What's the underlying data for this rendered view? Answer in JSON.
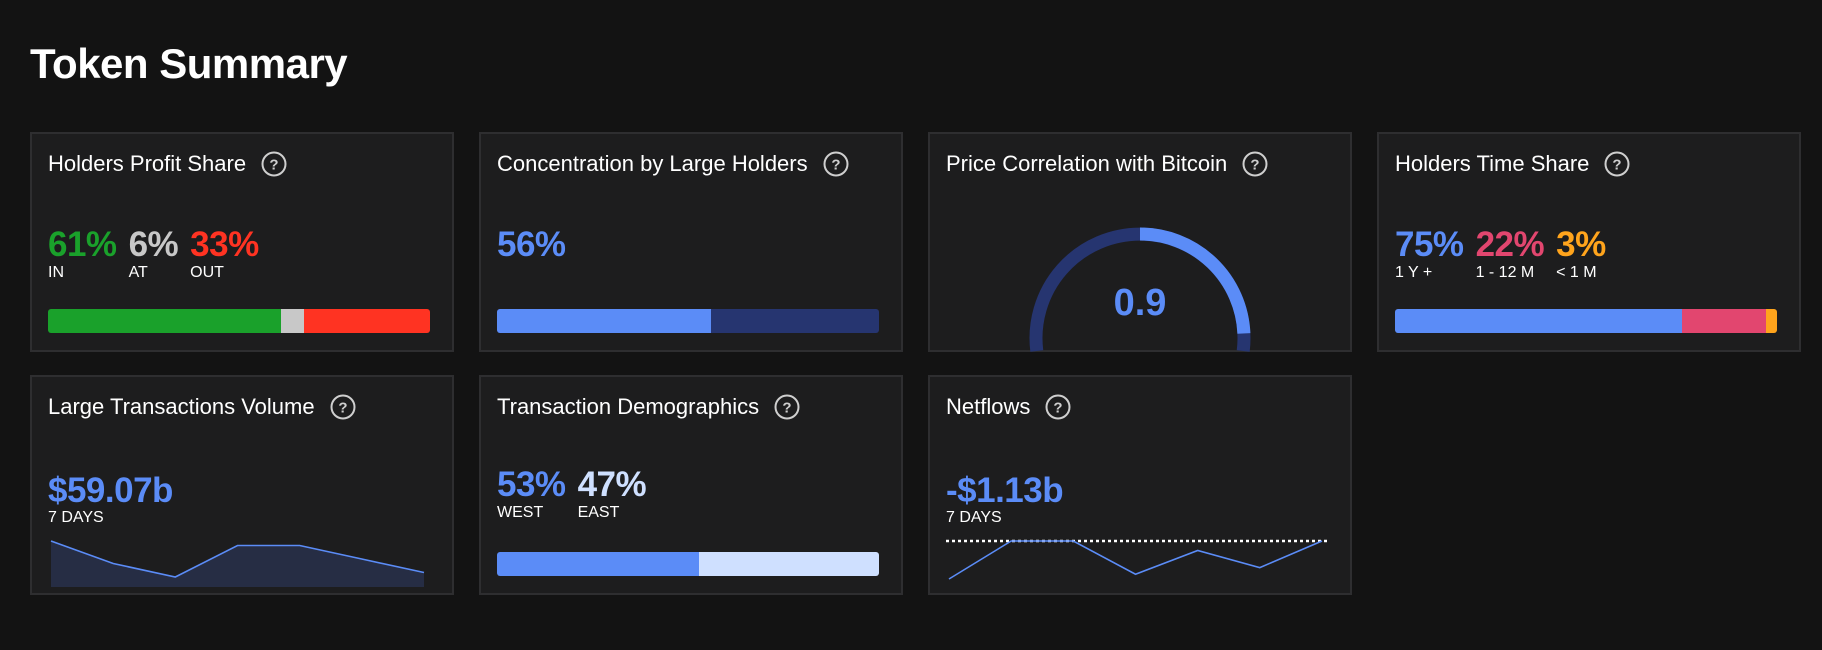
{
  "page": {
    "title": "Token Summary"
  },
  "colors": {
    "green": "#1aa12b",
    "gray": "#c8c8c8",
    "red": "#ff3322",
    "blue": "#5b8cf7",
    "navy": "#263570",
    "pink": "#e2466f",
    "orange": "#ffa41c",
    "light_blue": "#cfe0ff"
  },
  "cards": {
    "profit": {
      "title": "Holders Profit Share",
      "icon": "question-circle-icon",
      "metrics": [
        {
          "value": "61%",
          "label": "IN",
          "color": "#1aa12b",
          "share": 61
        },
        {
          "value": "6%",
          "label": "AT",
          "color": "#c8c8c8",
          "share": 6
        },
        {
          "value": "33%",
          "label": "OUT",
          "color": "#ff3322",
          "share": 33
        }
      ]
    },
    "concentration": {
      "title": "Concentration by Large Holders",
      "icon": "question-circle-icon",
      "value": "56%",
      "share": 56
    },
    "correlation": {
      "title": "Price Correlation with Bitcoin",
      "icon": "question-circle-icon",
      "value": "0.9",
      "gauge_level": 0.9
    },
    "time_share": {
      "title": "Holders Time Share",
      "icon": "question-circle-icon",
      "metrics": [
        {
          "value": "75%",
          "label": "1 Y +",
          "color": "#5b8cf7",
          "share": 75
        },
        {
          "value": "22%",
          "label": "1 - 12 M",
          "color": "#e2466f",
          "share": 22
        },
        {
          "value": "3%",
          "label": "< 1 M",
          "color": "#ffa41c",
          "share": 3
        }
      ]
    },
    "large_tx": {
      "title": "Large Transactions Volume",
      "icon": "question-circle-icon",
      "value": "$59.07b",
      "period": "7 DAYS",
      "trend": [
        10.2,
        9.7,
        9.4,
        10.1,
        10.1,
        9.8,
        9.5
      ]
    },
    "demographics": {
      "title": "Transaction Demographics",
      "icon": "question-circle-icon",
      "metrics": [
        {
          "value": "53%",
          "label": "WEST",
          "color": "#5b8cf7",
          "share": 53
        },
        {
          "value": "47%",
          "label": "EAST",
          "color": "#cfe0ff",
          "share": 47
        }
      ]
    },
    "netflows": {
      "title": "Netflows",
      "icon": "question-circle-icon",
      "value": "-$1.13b",
      "period": "7 DAYS",
      "trend": [
        -0.3,
        0.1,
        0.1,
        -0.25,
        0.0,
        -0.18,
        0.1
      ]
    }
  }
}
